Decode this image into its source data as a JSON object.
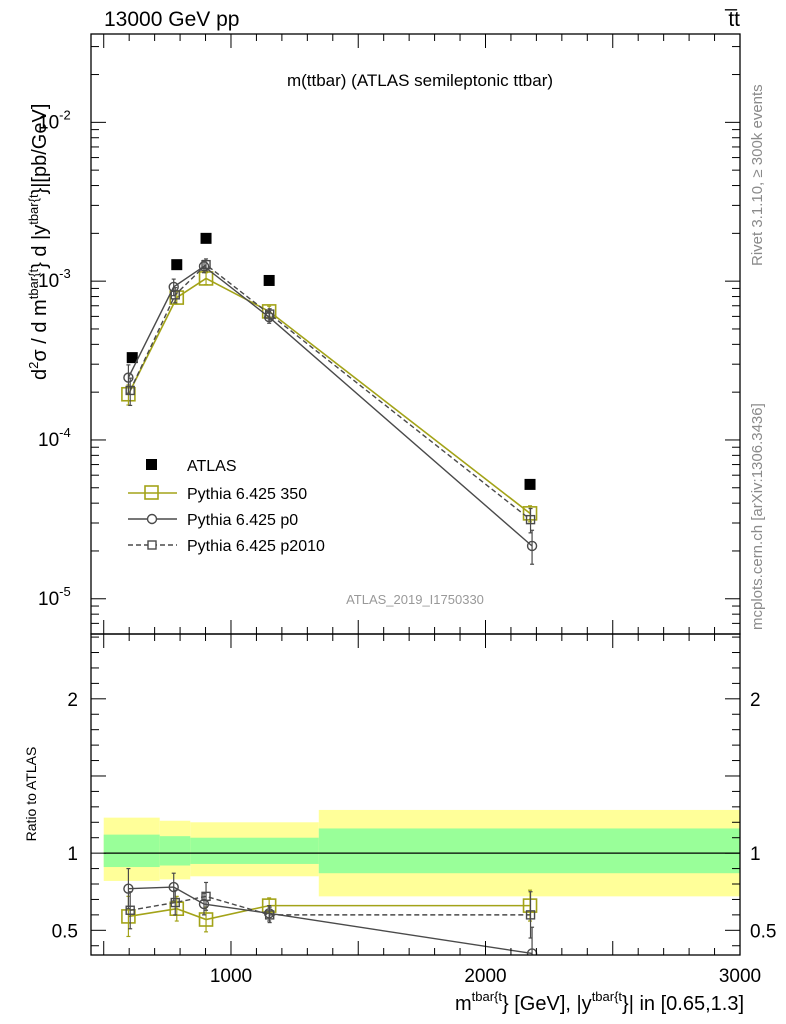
{
  "header": {
    "left": "13000 GeV pp",
    "right": "t̅t"
  },
  "side_labels": {
    "rivet": "Rivet 3.1.10, ≥ 300k events",
    "mcplots": "mcplots.cern.ch [arXiv:1306.3436]"
  },
  "chart_data": [
    {
      "type": "line",
      "log_y": true,
      "title": "m(ttbar) (ATLAS semileptonic ttbar)",
      "watermark": "ATLAS_2019_I1750330",
      "xlim": [
        450,
        3000
      ],
      "ylim": [
        6e-06,
        0.036
      ],
      "ytick_labels": [
        {
          "value": 0.01,
          "mant": "10",
          "exp": "-2"
        },
        {
          "value": 0.001,
          "mant": "10",
          "exp": "-3"
        },
        {
          "value": 0.0001,
          "mant": "10",
          "exp": "-4"
        },
        {
          "value": 1e-05,
          "mant": "10",
          "exp": "-5"
        }
      ],
      "ylabel": {
        "p1": "d",
        "p1sup": "2",
        "p2": "σ  /  d m",
        "p2sup": "tbar{t",
        "p3": "}  d |y",
        "p3sup": "tbar{t",
        "p4": "}|[pb/GeV]"
      },
      "legend": {
        "position": "lower-left",
        "entries": [
          {
            "key": "data",
            "label": "ATLAS"
          },
          {
            "key": "py350",
            "label": "Pythia 6.425 350"
          },
          {
            "key": "p0",
            "label": "Pythia 6.425 p0"
          },
          {
            "key": "p2010",
            "label": "Pythia 6.425 p2010"
          }
        ]
      },
      "series": [
        {
          "key": "data",
          "name": "ATLAS",
          "color": "#000000",
          "marker": "filled-square",
          "x": [
            612,
            787,
            902,
            1150,
            2175
          ],
          "y": [
            0.00033,
            0.00127,
            0.00186,
            0.00101,
            5.25e-05
          ]
        },
        {
          "key": "py350",
          "name": "Pythia 6.425 350",
          "color": "#a3a318",
          "marker": "open-square",
          "dash": "solid",
          "x": [
            597,
            787,
            902,
            1150,
            2175
          ],
          "y": [
            0.000194,
            0.000788,
            0.00104,
            0.000645,
            3.45e-05
          ],
          "err_up": [
            2.8e-05,
            7e-05,
            9e-05,
            5e-05,
            4e-06
          ],
          "err_dn": [
            2.8e-05,
            7e-05,
            9e-05,
            5e-05,
            4e-06
          ]
        },
        {
          "key": "p0",
          "name": "Pythia 6.425 p0",
          "color": "#4a4a4a",
          "marker": "open-circle",
          "dash": "solid",
          "x": [
            597,
            775,
            894,
            1150,
            2183
          ],
          "y": [
            0.000247,
            0.00092,
            0.00124,
            0.000593,
            2.15e-05
          ],
          "err_up": [
            5e-05,
            0.00011,
            0.00011,
            5e-05,
            5.5e-06
          ],
          "err_dn": [
            5e-05,
            0.00011,
            0.00011,
            5e-05,
            5e-06
          ]
        },
        {
          "key": "p2010",
          "name": "Pythia 6.425 p2010",
          "color": "#4a4a4a",
          "marker": "open-square-small",
          "dash": "dashed",
          "x": [
            604,
            781,
            902,
            1152,
            2177
          ],
          "y": [
            0.000205,
            0.00082,
            0.00127,
            0.00062,
            3.15e-05
          ],
          "err_up": [
            4e-05,
            9e-05,
            0.00011,
            5e-05,
            5.5e-06
          ],
          "err_dn": [
            4e-05,
            9e-05,
            0.00011,
            5e-05,
            5.5e-06
          ]
        }
      ]
    },
    {
      "type": "line",
      "ylabel": "Ratio to ATLAS",
      "xlabel": {
        "p1": "m",
        "p1sup": "tbar{t",
        "p2": "} [GeV], |y",
        "p2sup": "tbar{t",
        "p3": "}| in [0.65,1.3]"
      },
      "xlim": [
        450,
        3000
      ],
      "ylim": [
        0.34,
        2.42
      ],
      "xticks": [
        1000,
        2000,
        3000
      ],
      "yticks": [
        0.5,
        1,
        2
      ],
      "bands": [
        {
          "x0": 500,
          "x1": 720,
          "y0_outer": 0.82,
          "y1_outer": 1.23,
          "y0_inner": 0.91,
          "y1_inner": 1.12
        },
        {
          "x0": 720,
          "x1": 840,
          "y0_outer": 0.83,
          "y1_outer": 1.21,
          "y0_inner": 0.92,
          "y1_inner": 1.11
        },
        {
          "x0": 840,
          "x1": 1345,
          "y0_outer": 0.85,
          "y1_outer": 1.2,
          "y0_inner": 0.93,
          "y1_inner": 1.1
        },
        {
          "x0": 1345,
          "x1": 3000,
          "y0_outer": 0.72,
          "y1_outer": 1.28,
          "y0_inner": 0.87,
          "y1_inner": 1.16
        }
      ],
      "band_colors": {
        "outer": "#ffff99",
        "inner": "#99ff99"
      },
      "series": [
        {
          "key": "py350",
          "name": "Pythia 6.425 350",
          "color": "#a3a318",
          "marker": "open-square",
          "dash": "solid",
          "x": [
            597,
            787,
            902,
            1150,
            2175
          ],
          "y": [
            0.59,
            0.64,
            0.57,
            0.66,
            0.66
          ],
          "err_up": [
            0.13,
            0.08,
            0.08,
            0.05,
            0.1
          ],
          "err_dn": [
            0.13,
            0.08,
            0.08,
            0.05,
            0.1
          ]
        },
        {
          "key": "p0",
          "name": "Pythia 6.425 p0",
          "color": "#4a4a4a",
          "marker": "open-circle",
          "dash": "solid",
          "x": [
            597,
            775,
            894,
            1150,
            2183
          ],
          "y": [
            0.77,
            0.78,
            0.67,
            0.61,
            0.35
          ],
          "err_up": [
            0.13,
            0.09,
            0.07,
            0.05,
            0.17
          ],
          "err_dn": [
            0.13,
            0.09,
            0.07,
            0.05,
            0.17
          ]
        },
        {
          "key": "p2010",
          "name": "Pythia 6.425 p2010",
          "color": "#4a4a4a",
          "marker": "open-square-small",
          "dash": "dashed",
          "x": [
            604,
            781,
            902,
            1152,
            2177
          ],
          "y": [
            0.63,
            0.68,
            0.72,
            0.6,
            0.6
          ],
          "err_up": [
            0.12,
            0.08,
            0.09,
            0.05,
            0.15
          ],
          "err_dn": [
            0.12,
            0.08,
            0.09,
            0.05,
            0.15
          ]
        }
      ]
    }
  ]
}
